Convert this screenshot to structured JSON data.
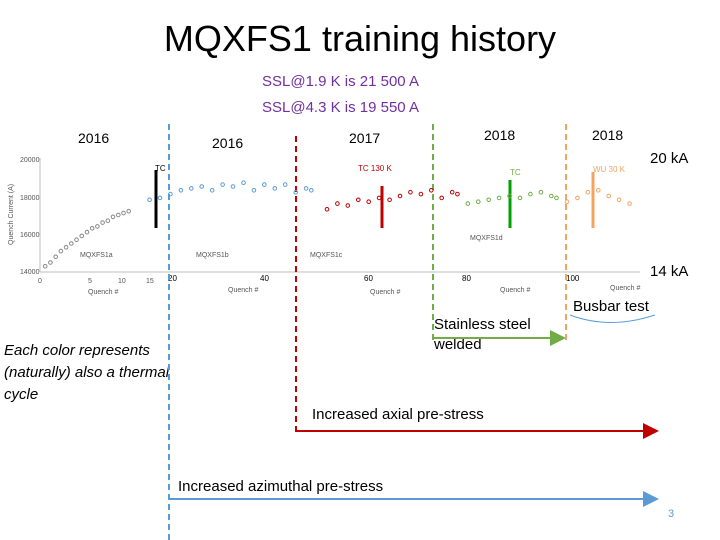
{
  "title": "MQXFS1 training history",
  "ssl_lines": [
    "SSL@1.9  K is 21 500 A",
    "SSL@4.3  K is 19 550 A"
  ],
  "years": [
    "2016",
    "2016",
    "2017",
    "2018",
    "2018"
  ],
  "right_labels": {
    "top": "20 kA",
    "bottom": "14 kA"
  },
  "notes": {
    "color_cycle": "Each color represents (naturally) also a thermal cycle",
    "stainless": "Stainless steel welded",
    "busbar": "Busbar test",
    "axial": "Increased axial pre-stress",
    "azimuthal": "Increased azimuthal pre-stress"
  },
  "page_number": "3",
  "colors": {
    "blue": "#5b9bd5",
    "red": "#c00000",
    "green": "#70ad47",
    "orange": "#f4a460",
    "title_purple": "#7030a0"
  },
  "chart_data": {
    "type": "scatter",
    "x_tick_labels": [
      "0",
      "5",
      "10",
      "15",
      "20",
      "40",
      "60",
      "80",
      "100"
    ],
    "y_tick_labels": [
      "20000",
      "18000",
      "16000",
      "14000"
    ],
    "xlabel": "Quench #",
    "ylabel": "Quench Current (A)",
    "panel_labels": [
      "TC",
      "TC 130 K",
      "TC",
      "WU 30 K"
    ],
    "legend_entries": [
      "MQXFS1a",
      "MQXFS1b",
      "MQXFS1c",
      "MQXFS1d"
    ],
    "series": [
      {
        "color": "#888888",
        "points": [
          [
            1,
            14300
          ],
          [
            2,
            14500
          ],
          [
            3,
            14800
          ],
          [
            4,
            15100
          ],
          [
            5,
            15300
          ],
          [
            6,
            15500
          ],
          [
            7,
            15700
          ],
          [
            8,
            15900
          ],
          [
            9,
            16100
          ],
          [
            10,
            16300
          ],
          [
            11,
            16400
          ],
          [
            12,
            16600
          ],
          [
            13,
            16700
          ],
          [
            14,
            16900
          ],
          [
            15,
            17000
          ],
          [
            16,
            17100
          ],
          [
            17,
            17200
          ]
        ]
      },
      {
        "color": "#5b9bd5",
        "points": [
          [
            21,
            17800
          ],
          [
            23,
            17900
          ],
          [
            25,
            18100
          ],
          [
            27,
            18300
          ],
          [
            29,
            18400
          ],
          [
            31,
            18500
          ],
          [
            33,
            18300
          ],
          [
            35,
            18600
          ],
          [
            37,
            18500
          ],
          [
            39,
            18700
          ],
          [
            41,
            18300
          ],
          [
            43,
            18600
          ],
          [
            45,
            18400
          ],
          [
            47,
            18600
          ],
          [
            49,
            18200
          ],
          [
            51,
            18400
          ],
          [
            52,
            18300
          ]
        ]
      },
      {
        "color": "#c00000",
        "points": [
          [
            55,
            17300
          ],
          [
            57,
            17600
          ],
          [
            59,
            17500
          ],
          [
            61,
            17800
          ],
          [
            63,
            17700
          ],
          [
            65,
            17900
          ],
          [
            67,
            17800
          ],
          [
            69,
            18000
          ],
          [
            71,
            18200
          ],
          [
            73,
            18100
          ],
          [
            75,
            18300
          ],
          [
            77,
            17900
          ],
          [
            79,
            18200
          ],
          [
            80,
            18100
          ]
        ]
      },
      {
        "color": "#70ad47",
        "points": [
          [
            82,
            17600
          ],
          [
            84,
            17700
          ],
          [
            86,
            17800
          ],
          [
            88,
            17900
          ],
          [
            90,
            18000
          ],
          [
            92,
            17900
          ],
          [
            94,
            18100
          ],
          [
            96,
            18200
          ],
          [
            98,
            18000
          ],
          [
            99,
            17900
          ]
        ]
      },
      {
        "color": "#f4a460",
        "points": [
          [
            101,
            17700
          ],
          [
            103,
            17900
          ],
          [
            105,
            18200
          ],
          [
            107,
            18300
          ],
          [
            109,
            18000
          ],
          [
            111,
            17800
          ],
          [
            113,
            17600
          ]
        ]
      }
    ]
  }
}
